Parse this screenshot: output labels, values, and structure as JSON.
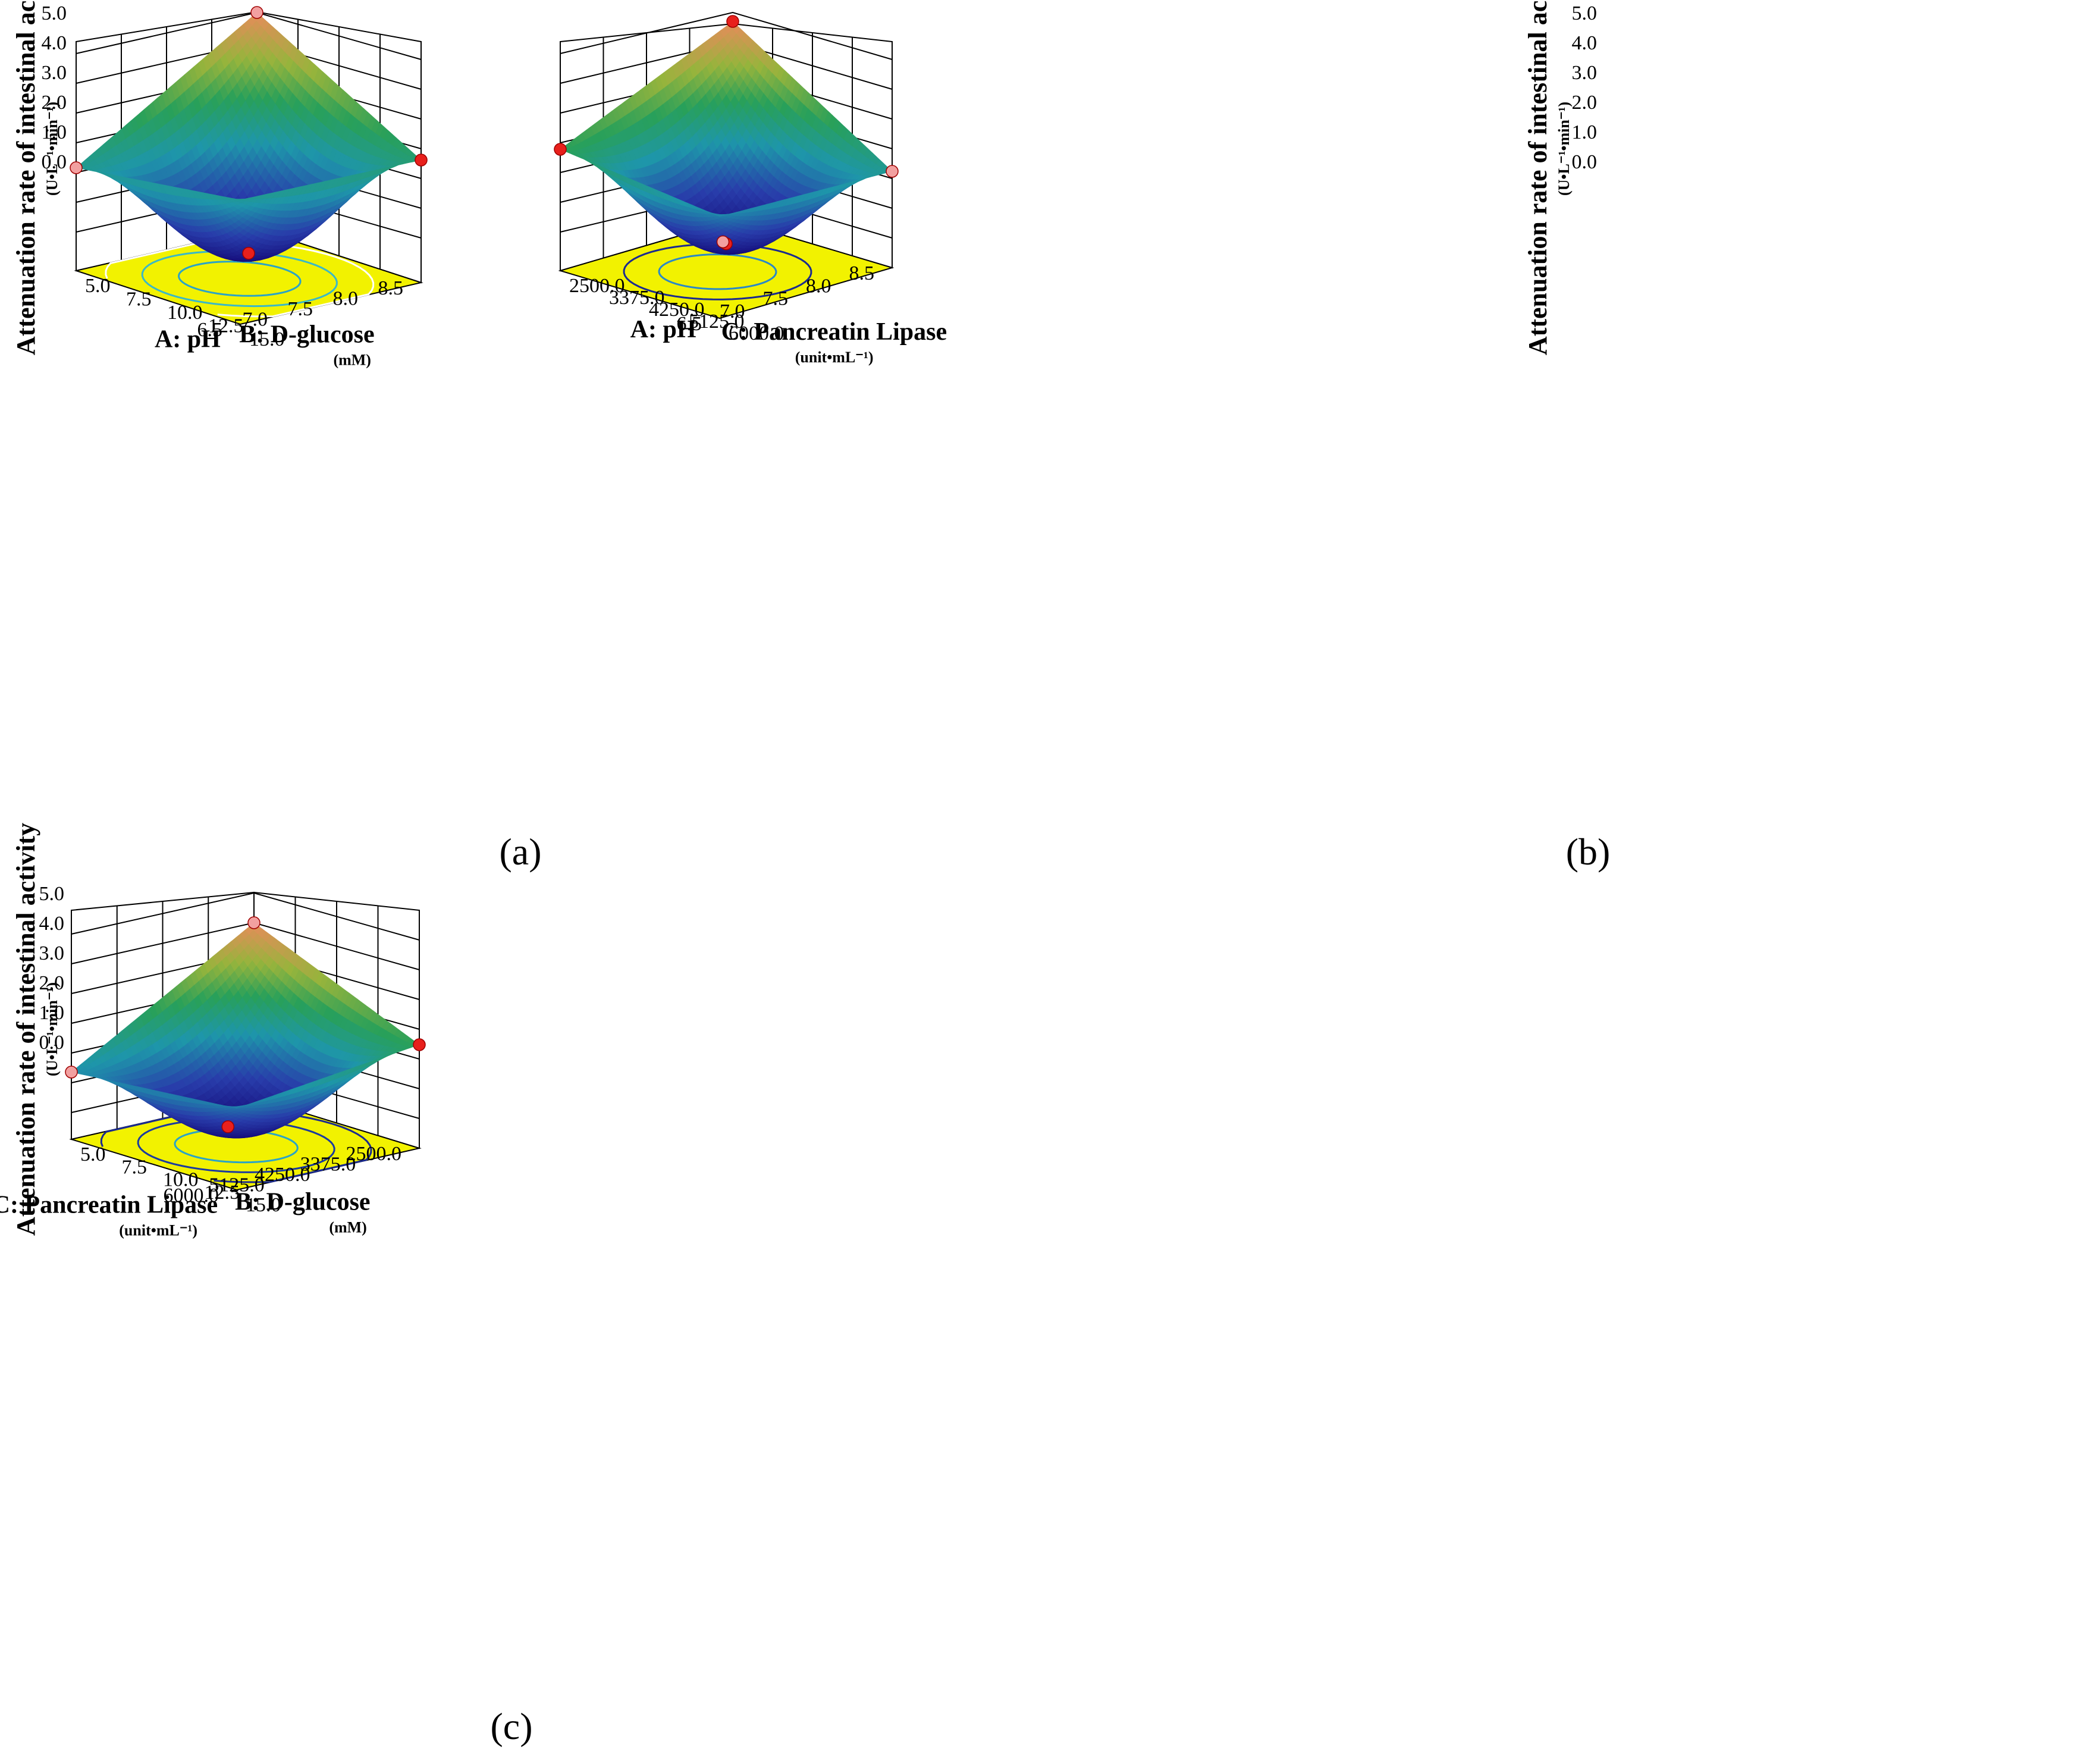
{
  "colors": {
    "floor": "#f2f200",
    "grid": "#000000",
    "point_red": "#e8201c",
    "point_pink": "#f2a0a0",
    "surface_low": "#1a1090",
    "surface_mid": "#1aa6a6",
    "surface_high": "#e38a55"
  },
  "chart_data": [
    {
      "type": "surface3d",
      "caption": "(a)",
      "zlabel": "Attenuation rate of intestinal activity",
      "zunit": "(U•L⁻¹•min⁻¹)",
      "zticks": [
        "0.0",
        "1.0",
        "2.0",
        "3.0",
        "4.0",
        "5.0"
      ],
      "zlim": [
        -1.2,
        5.0
      ],
      "left_axis": {
        "label": "A: pH",
        "unit": "",
        "ticks": [
          "6.5",
          "7.0",
          "7.5",
          "8.0",
          "8.5"
        ]
      },
      "right_axis": {
        "label": "B: D-glucose",
        "unit": "(mM)",
        "ticks": [
          "15.0",
          "12.5",
          "10.0",
          "7.5",
          "5.0"
        ]
      },
      "corner_values": {
        "back": 5.0,
        "left": 2.0,
        "right": 2.5,
        "front": 2.0
      },
      "minimum": -1.1,
      "design_points": [
        {
          "u": 0,
          "v": 0,
          "z": 5.0,
          "color": "pink"
        },
        {
          "u": 1,
          "v": 0,
          "z": 2.0,
          "color": "pink"
        },
        {
          "u": 0,
          "v": 1,
          "z": 2.5,
          "color": "red"
        },
        {
          "u": 0.5,
          "v": 0.5,
          "z": 0.3,
          "color": "red"
        }
      ],
      "contours": [
        {
          "level": 2.3,
          "color": "#2aa3c8"
        },
        {
          "level": 1.6,
          "color": "#3ab8c8"
        },
        {
          "level": -0.6,
          "color": "#ffffff"
        }
      ]
    },
    {
      "type": "surface3d",
      "caption": "(b)",
      "zlabel": "Attenuation rate of intestinal activity",
      "zunit": "(U•L⁻¹•min⁻¹)",
      "zticks": [
        "0.0",
        "1.0",
        "2.0",
        "3.0",
        "4.0",
        "5.0"
      ],
      "zlim": [
        -0.8,
        5.0
      ],
      "left_axis": {
        "label": "A: pH",
        "unit": "",
        "ticks": [
          "6.5",
          "7.0",
          "7.5",
          "8.0",
          "8.5"
        ]
      },
      "right_axis": {
        "label": "C: Pancreatin Lipase",
        "unit": "(unit•mL⁻¹)",
        "ticks": [
          "6000.0",
          "5125.0",
          "4250.0",
          "3375.0",
          "2500.0"
        ]
      },
      "corner_values": {
        "back": 4.7,
        "left": 2.8,
        "right": 2.0,
        "front": 1.5
      },
      "minimum": -0.75,
      "design_points": [
        {
          "u": 0,
          "v": 0,
          "z": 4.7,
          "color": "red"
        },
        {
          "u": 1,
          "v": 0,
          "z": 2.8,
          "color": "red"
        },
        {
          "u": 0,
          "v": 1,
          "z": 2.0,
          "color": "pink"
        },
        {
          "u": 0.5,
          "v": 0.5,
          "z": 0.3,
          "color": "red"
        },
        {
          "u": 0.75,
          "v": 0.75,
          "z": -0.2,
          "color": "pink"
        }
      ],
      "contours": [
        {
          "level": 2.2,
          "color": "#2a88c8"
        },
        {
          "level": 0.9,
          "color": "#1a2a90"
        }
      ]
    },
    {
      "type": "surface3d",
      "caption": "(c)",
      "zlabel": "Attenuation rate of intestinal activity",
      "zunit": "(U•L⁻¹•min⁻¹)",
      "zticks": [
        "0.0",
        "1.0",
        "2.0",
        "3.0",
        "4.0",
        "5.0"
      ],
      "zlim": [
        -1.0,
        5.0
      ],
      "left_axis": {
        "label": "C: Pancreatin Lipase",
        "unit": "(unit•mL⁻¹)",
        "ticks": [
          "6000.0",
          "5125.0",
          "4250.0",
          "3375.0",
          "2500.0"
        ]
      },
      "right_axis": {
        "label": "B: D-glucose",
        "unit": "(mM)",
        "ticks": [
          "15.0",
          "12.5",
          "10.0",
          "7.5",
          "5.0"
        ]
      },
      "corner_values": {
        "back": 4.0,
        "left": 1.2,
        "right": 2.3,
        "front": 1.0
      },
      "minimum": -0.9,
      "design_points": [
        {
          "u": 0,
          "v": 0,
          "z": 4.0,
          "color": "pink"
        },
        {
          "u": 1,
          "v": 0,
          "z": 1.2,
          "color": "pink"
        },
        {
          "u": 0,
          "v": 1,
          "z": 2.3,
          "color": "red"
        },
        {
          "u": 0.55,
          "v": 0.45,
          "z": -0.05,
          "color": "red"
        }
      ],
      "contours": [
        {
          "level": 2.2,
          "color": "#2aa3c8"
        },
        {
          "level": 1.4,
          "color": "#1a3aa0"
        },
        {
          "level": 0.6,
          "color": "#1a2a90"
        }
      ]
    }
  ]
}
